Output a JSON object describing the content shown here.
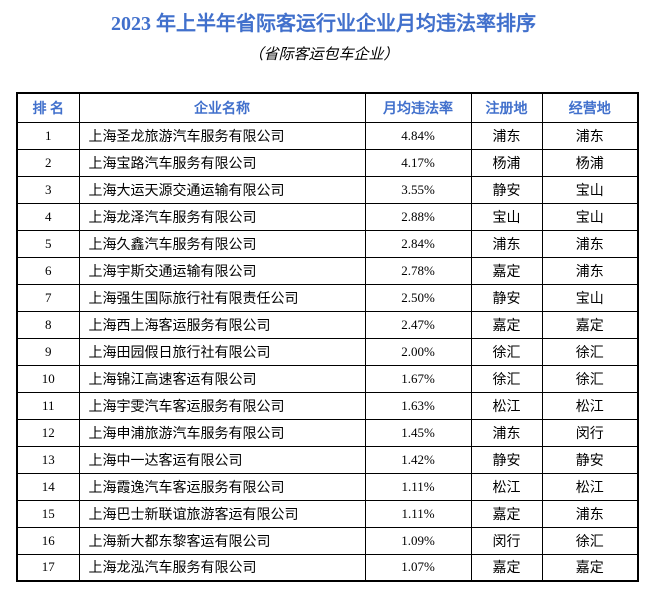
{
  "title": "2023 年上半年省际客运行业企业月均违法率排序",
  "subtitle": "（省际客运包车企业）",
  "colors": {
    "accent_blue": "#4170CC",
    "border_black": "#000000",
    "background": "#FFFFFF"
  },
  "table": {
    "headers": [
      "排 名",
      "企业名称",
      "月均违法率",
      "注册地",
      "经营地"
    ],
    "rows": [
      {
        "rank": "1",
        "company": "上海圣龙旅游汽车服务有限公司",
        "rate": "4.84%",
        "registered": "浦东",
        "operating": "浦东"
      },
      {
        "rank": "2",
        "company": "上海宝路汽车服务有限公司",
        "rate": "4.17%",
        "registered": "杨浦",
        "operating": "杨浦"
      },
      {
        "rank": "3",
        "company": "上海大运天源交通运输有限公司",
        "rate": "3.55%",
        "registered": "静安",
        "operating": "宝山"
      },
      {
        "rank": "4",
        "company": "上海龙泽汽车服务有限公司",
        "rate": "2.88%",
        "registered": "宝山",
        "operating": "宝山"
      },
      {
        "rank": "5",
        "company": "上海久鑫汽车服务有限公司",
        "rate": "2.84%",
        "registered": "浦东",
        "operating": "浦东"
      },
      {
        "rank": "6",
        "company": "上海宇斯交通运输有限公司",
        "rate": "2.78%",
        "registered": "嘉定",
        "operating": "浦东"
      },
      {
        "rank": "7",
        "company": "上海强生国际旅行社有限责任公司",
        "rate": "2.50%",
        "registered": "静安",
        "operating": "宝山"
      },
      {
        "rank": "8",
        "company": "上海西上海客运服务有限公司",
        "rate": "2.47%",
        "registered": "嘉定",
        "operating": "嘉定"
      },
      {
        "rank": "9",
        "company": "上海田园假日旅行社有限公司",
        "rate": "2.00%",
        "registered": "徐汇",
        "operating": "徐汇"
      },
      {
        "rank": "10",
        "company": "上海锦江高速客运有限公司",
        "rate": "1.67%",
        "registered": "徐汇",
        "operating": "徐汇"
      },
      {
        "rank": "11",
        "company": "上海宇雯汽车客运服务有限公司",
        "rate": "1.63%",
        "registered": "松江",
        "operating": "松江"
      },
      {
        "rank": "12",
        "company": "上海申浦旅游汽车服务有限公司",
        "rate": "1.45%",
        "registered": "浦东",
        "operating": "闵行"
      },
      {
        "rank": "13",
        "company": "上海中一达客运有限公司",
        "rate": "1.42%",
        "registered": "静安",
        "operating": "静安"
      },
      {
        "rank": "14",
        "company": "上海霞逸汽车客运服务有限公司",
        "rate": "1.11%",
        "registered": "松江",
        "operating": "松江"
      },
      {
        "rank": "15",
        "company": "上海巴士新联谊旅游客运有限公司",
        "rate": "1.11%",
        "registered": "嘉定",
        "operating": "浦东"
      },
      {
        "rank": "16",
        "company": "上海新大都东黎客运有限公司",
        "rate": "1.09%",
        "registered": "闵行",
        "operating": "徐汇"
      },
      {
        "rank": "17",
        "company": "上海龙泓汽车服务有限公司",
        "rate": "1.07%",
        "registered": "嘉定",
        "operating": "嘉定"
      }
    ]
  }
}
